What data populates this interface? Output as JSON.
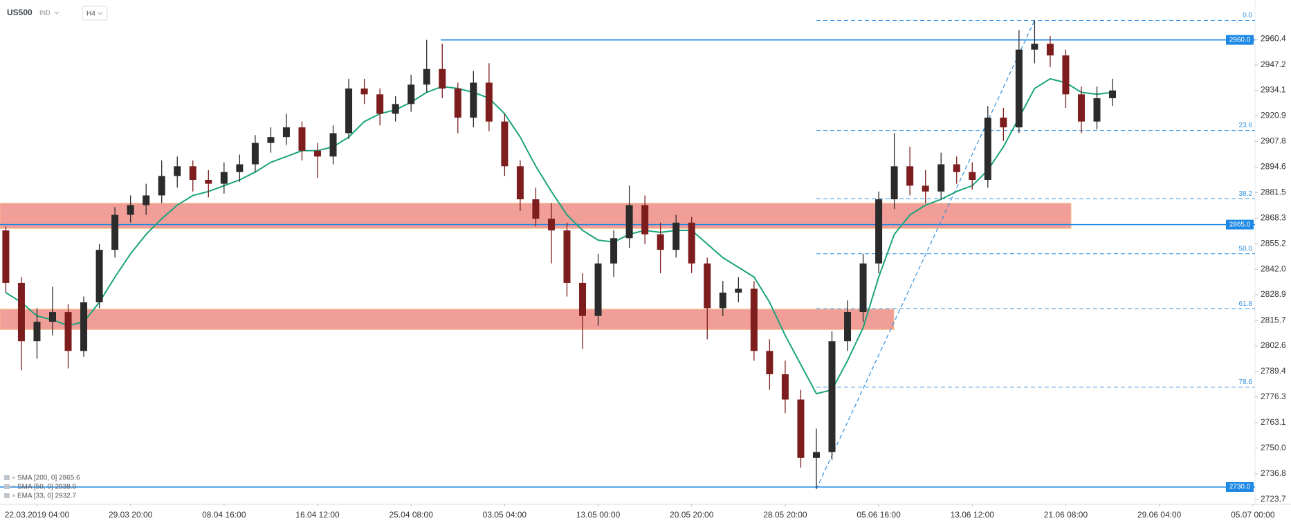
{
  "chart_data": {
    "type": "candlestick",
    "title": "US500",
    "instrument_type": "IND",
    "timeframe": "H4",
    "categories": [
      null,
      null,
      "22.03.2019 04:00",
      null,
      null,
      null,
      null,
      null,
      "29.03 20:00",
      null,
      null,
      null,
      null,
      null,
      "08.04 16:00",
      null,
      null,
      null,
      null,
      null,
      "16.04 12:00",
      null,
      null,
      null,
      null,
      null,
      "25.04 08:00",
      null,
      null,
      null,
      null,
      null,
      "03.05 04:00",
      null,
      null,
      null,
      null,
      null,
      "13.05 00:00",
      null,
      null,
      null,
      null,
      null,
      "20.05 20:00",
      null,
      null,
      null,
      null,
      null,
      "28.05 20:00",
      null,
      null,
      null,
      null,
      null,
      "05.06 16:00",
      null,
      null,
      null,
      null,
      null,
      "13.06 12:00",
      null,
      null,
      null,
      null,
      null,
      "21.06 08:00",
      null,
      null,
      null,
      null,
      null,
      "29.06 04:00",
      null,
      null,
      null,
      null,
      null,
      "05.07 00:00"
    ],
    "open": [
      2862,
      2835,
      2805,
      2815,
      2820,
      2800,
      2825,
      2852,
      2870,
      2875,
      2880,
      2890,
      2895,
      2888,
      2886,
      2892,
      2896,
      2907,
      2910,
      2915,
      2903,
      2900,
      2912,
      2935,
      2932,
      2922,
      2927,
      2937,
      2945,
      2935,
      2920,
      2938,
      2918,
      2895,
      2878,
      2868,
      2862,
      2835,
      2818,
      2845,
      2858,
      2875,
      2860,
      2852,
      2866,
      2845,
      2822,
      2830,
      2832,
      2800,
      2788,
      2775,
      2745,
      2748,
      2805,
      2820,
      2845,
      2878,
      2895,
      2885,
      2882,
      2896,
      2892,
      2888,
      2920,
      2915,
      2955,
      2958,
      2952,
      2932,
      2918,
      2930,
      null,
      null,
      null,
      null,
      null,
      null,
      null,
      null,
      null
    ],
    "high": [
      2864,
      2838,
      2822,
      2833,
      2824,
      2828,
      2855,
      2874,
      2880,
      2886,
      2898,
      2900,
      2898,
      2893,
      2897,
      2901,
      2911,
      2915,
      2922,
      2918,
      2907,
      2916,
      2940,
      2940,
      2935,
      2931,
      2942,
      2960,
      2958,
      2938,
      2944,
      2948,
      2922,
      2898,
      2884,
      2876,
      2866,
      2840,
      2850,
      2862,
      2885,
      2880,
      2866,
      2870,
      2869,
      2848,
      2836,
      2838,
      2836,
      2806,
      2795,
      2780,
      2760,
      2810,
      2826,
      2850,
      2882,
      2912,
      2905,
      2893,
      2902,
      2900,
      2897,
      2926,
      2925,
      2965,
      2970,
      2962,
      2955,
      2936,
      2936,
      2940,
      null,
      null,
      null,
      null,
      null,
      null,
      null,
      null,
      null
    ],
    "low": [
      2830,
      2790,
      2796,
      2808,
      2791,
      2797,
      2822,
      2848,
      2866,
      2870,
      2876,
      2884,
      2882,
      2879,
      2881,
      2887,
      2892,
      2902,
      2906,
      2898,
      2889,
      2896,
      2909,
      2927,
      2916,
      2918,
      2923,
      2933,
      2930,
      2912,
      2915,
      2913,
      2890,
      2872,
      2864,
      2845,
      2828,
      2801,
      2813,
      2838,
      2853,
      2855,
      2840,
      2848,
      2840,
      2806,
      2818,
      2825,
      2795,
      2780,
      2768,
      2740,
      2729,
      2744,
      2800,
      2815,
      2840,
      2873,
      2880,
      2876,
      2878,
      2886,
      2883,
      2884,
      2908,
      2912,
      2948,
      2946,
      2925,
      2912,
      2914,
      2926,
      null,
      null,
      null,
      null,
      null,
      null,
      null,
      null,
      null
    ],
    "close": [
      2835,
      2805,
      2815,
      2820,
      2800,
      2825,
      2852,
      2870,
      2875,
      2880,
      2890,
      2895,
      2888,
      2886,
      2892,
      2896,
      2907,
      2910,
      2915,
      2903,
      2900,
      2912,
      2935,
      2932,
      2922,
      2927,
      2937,
      2945,
      2935,
      2920,
      2938,
      2918,
      2895,
      2878,
      2868,
      2862,
      2835,
      2818,
      2845,
      2858,
      2875,
      2860,
      2852,
      2866,
      2845,
      2822,
      2830,
      2832,
      2800,
      2788,
      2775,
      2745,
      2748,
      2805,
      2820,
      2845,
      2878,
      2895,
      2885,
      2882,
      2896,
      2892,
      2888,
      2920,
      2915,
      2955,
      2958,
      2952,
      2932,
      2918,
      2930,
      2934,
      null,
      null,
      null,
      null,
      null,
      null,
      null,
      null,
      null
    ],
    "up_color": "#2b2b2b",
    "down_color": "#7d1d1d",
    "moving_average": {
      "color": "#1aa37a",
      "values": [
        2830,
        2825,
        2818,
        2816,
        2813,
        2815,
        2825,
        2838,
        2850,
        2860,
        2868,
        2875,
        2880,
        2882,
        2885,
        2888,
        2892,
        2897,
        2900,
        2903,
        2903,
        2905,
        2910,
        2918,
        2922,
        2924,
        2928,
        2933,
        2936,
        2935,
        2933,
        2930,
        2922,
        2910,
        2895,
        2882,
        2870,
        2862,
        2857,
        2856,
        2860,
        2862,
        2861,
        2862,
        2862,
        2855,
        2848,
        2843,
        2838,
        2825,
        2808,
        2793,
        2778,
        2780,
        2795,
        2812,
        2838,
        2860,
        2870,
        2875,
        2878,
        2882,
        2885,
        2893,
        2905,
        2920,
        2935,
        2940,
        2938,
        2933,
        2932,
        2933,
        null,
        null,
        null,
        null,
        null,
        null,
        null,
        null,
        null
      ]
    },
    "indicators": [
      "SMA [200, 0] 2865.6",
      "SMA [50, 0] 2938.0",
      "EMA [33, 0] 2932.7"
    ],
    "ylim": [
      2721.1,
      2977.1
    ],
    "yticks": [
      2960.4,
      2947.2,
      2934.1,
      2920.9,
      2907.8,
      2894.6,
      2881.5,
      2868.3,
      2855.2,
      {
        "value": 2842.0,
        "label": "2842.0"
      },
      2828.9,
      2815.7,
      2802.6,
      2789.4,
      2776.3,
      2763.1,
      {
        "value": 2750.0,
        "label": "2750.0"
      },
      2736.8,
      2723.7
    ],
    "levels": [
      {
        "value": 2960,
        "label": "2960.0"
      },
      {
        "value": 2865,
        "label": "2865.0"
      },
      {
        "value": 2730,
        "label": "2730.0"
      }
    ],
    "level_color": "#1e88e5",
    "zones": [
      {
        "from": 2863,
        "to": 2876
      },
      {
        "from": 2811,
        "to": 2821.5
      }
    ],
    "zone_color": "#f19e99",
    "fibonacci": {
      "color": "#2f8fe0",
      "levels": [
        {
          "value": 2970,
          "label": "0.0"
        },
        {
          "value": 2913.4,
          "label": "23.6"
        },
        {
          "value": 2878.3,
          "label": "38.2"
        },
        {
          "value": 2850,
          "label": "50.0"
        },
        {
          "value": 2821.7,
          "label": "61.8"
        },
        {
          "value": 2781.4,
          "label": "78.6"
        }
      ]
    }
  }
}
